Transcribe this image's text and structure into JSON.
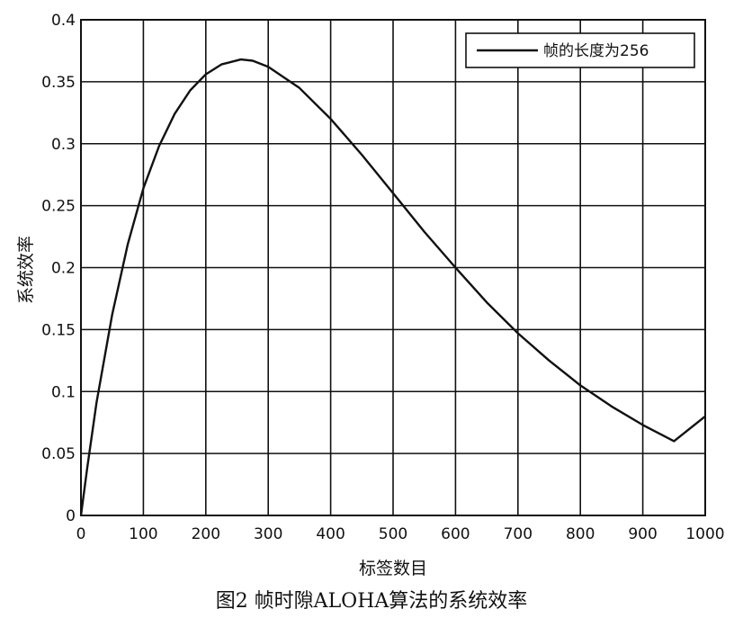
{
  "chart_data": {
    "type": "line",
    "title": "",
    "xlabel": "标签数目",
    "ylabel": "系统效率",
    "xlim": [
      0,
      1000
    ],
    "ylim": [
      0,
      0.4
    ],
    "xticks": [
      0,
      100,
      200,
      300,
      400,
      500,
      600,
      700,
      800,
      900,
      1000
    ],
    "yticks": [
      0,
      0.05,
      0.1,
      0.15,
      0.2,
      0.25,
      0.3,
      0.35,
      0.4
    ],
    "xtick_labels": [
      "0",
      "100",
      "200",
      "300",
      "400",
      "500",
      "600",
      "700",
      "800",
      "900",
      "1000"
    ],
    "ytick_labels": [
      "0",
      "0.05",
      "0.1",
      "0.15",
      "0.2",
      "0.25",
      "0.3",
      "0.35",
      "0.4"
    ],
    "grid": true,
    "legend_position": "top-right",
    "series": [
      {
        "name": "帧的长度为256",
        "color": "#111111",
        "x": [
          0,
          10,
          25,
          50,
          75,
          100,
          125,
          150,
          175,
          200,
          225,
          256,
          275,
          300,
          350,
          400,
          450,
          500,
          550,
          600,
          650,
          700,
          750,
          800,
          850,
          900,
          950,
          1000
        ],
        "y": [
          0,
          0.038,
          0.091,
          0.162,
          0.219,
          0.264,
          0.298,
          0.324,
          0.343,
          0.356,
          0.364,
          0.368,
          0.367,
          0.362,
          0.345,
          0.32,
          0.291,
          0.26,
          0.229,
          0.2,
          0.172,
          0.147,
          0.125,
          0.105,
          0.088,
          0.073,
          0.06,
          0.08
        ]
      }
    ]
  },
  "caption": "图2 帧时隙ALOHA算法的系统效率"
}
